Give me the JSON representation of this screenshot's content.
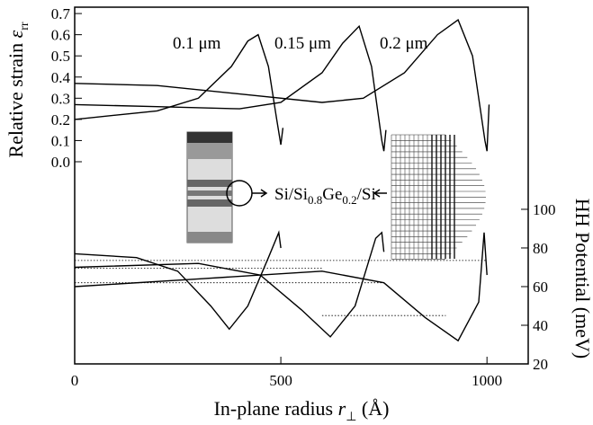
{
  "chart_data": {
    "type": "line",
    "xlabel": [
      "In-plane radius ",
      "r",
      "⊥",
      " (Å)"
    ],
    "ylabel": [
      "Relative strain ",
      "ε",
      "rr"
    ],
    "y2label": "HH Potential (meV)",
    "xlim": [
      0,
      1100
    ],
    "xticks": [
      0,
      500,
      1000
    ],
    "ylim": [
      -0.955,
      0.73
    ],
    "yticks": [
      {
        "value": 0,
        "label": "0.0"
      },
      0.1,
      0.2,
      0.3,
      0.4,
      0.5,
      0.6,
      0.7
    ],
    "y2lim": [
      20,
      204.6
    ],
    "y2ticks": [
      20,
      40,
      60,
      80,
      100
    ],
    "annotations": [
      "0.1 μm",
      "0.15 μm",
      "0.2 μm"
    ],
    "inset_label": [
      "Si/Si",
      "0.8",
      "Ge",
      "0.2",
      "/Si"
    ],
    "series": [
      {
        "color": "#000",
        "x": [
          0,
          200,
          300,
          380,
          420,
          445,
          470,
          490,
          500,
          505
        ],
        "values": [
          0.2,
          0.24,
          0.3,
          0.45,
          0.57,
          0.6,
          0.45,
          0.2,
          0.08,
          0.16
        ]
      },
      {
        "color": "#000",
        "x": [
          0,
          200,
          400,
          500,
          600,
          650,
          690,
          720,
          745,
          750,
          755
        ],
        "values": [
          0.27,
          0.26,
          0.25,
          0.28,
          0.42,
          0.56,
          0.64,
          0.45,
          0.1,
          0.05,
          0.15
        ]
      },
      {
        "color": "#000",
        "x": [
          0,
          200,
          400,
          600,
          700,
          800,
          880,
          930,
          965,
          995,
          1000,
          1005
        ],
        "values": [
          0.37,
          0.36,
          0.32,
          0.28,
          0.3,
          0.42,
          0.6,
          0.67,
          0.5,
          0.1,
          0.05,
          0.27
        ]
      },
      {
        "color": "#000",
        "axis": "y2",
        "x": [
          0,
          150,
          250,
          330,
          375,
          420,
          470,
          495,
          500
        ],
        "values": [
          77,
          75,
          68,
          50,
          38,
          50,
          75,
          88,
          80
        ]
      },
      {
        "color": "#000",
        "axis": "y2",
        "x": [
          0,
          300,
          450,
          550,
          620,
          680,
          730,
          745,
          750
        ],
        "values": [
          70,
          72,
          66,
          48,
          34,
          50,
          85,
          88,
          78
        ]
      },
      {
        "color": "#000",
        "axis": "y2",
        "x": [
          0,
          300,
          600,
          750,
          850,
          930,
          980,
          993,
          1000
        ],
        "values": [
          60,
          64,
          68,
          62,
          44,
          32,
          52,
          88,
          66
        ]
      },
      {
        "color": "#000",
        "dash": true,
        "axis": "y2",
        "x": [
          0,
          1000
        ],
        "values": [
          73.5,
          73.5
        ]
      },
      {
        "color": "#000",
        "dash": true,
        "axis": "y2",
        "x": [
          0,
          600
        ],
        "values": [
          69.5,
          69.5
        ]
      },
      {
        "color": "#000",
        "dash": true,
        "axis": "y2",
        "x": [
          0,
          750
        ],
        "values": [
          62,
          62
        ]
      },
      {
        "color": "#000",
        "dash": true,
        "axis": "y2",
        "x": [
          600,
          900
        ],
        "values": [
          45,
          45
        ]
      }
    ]
  }
}
